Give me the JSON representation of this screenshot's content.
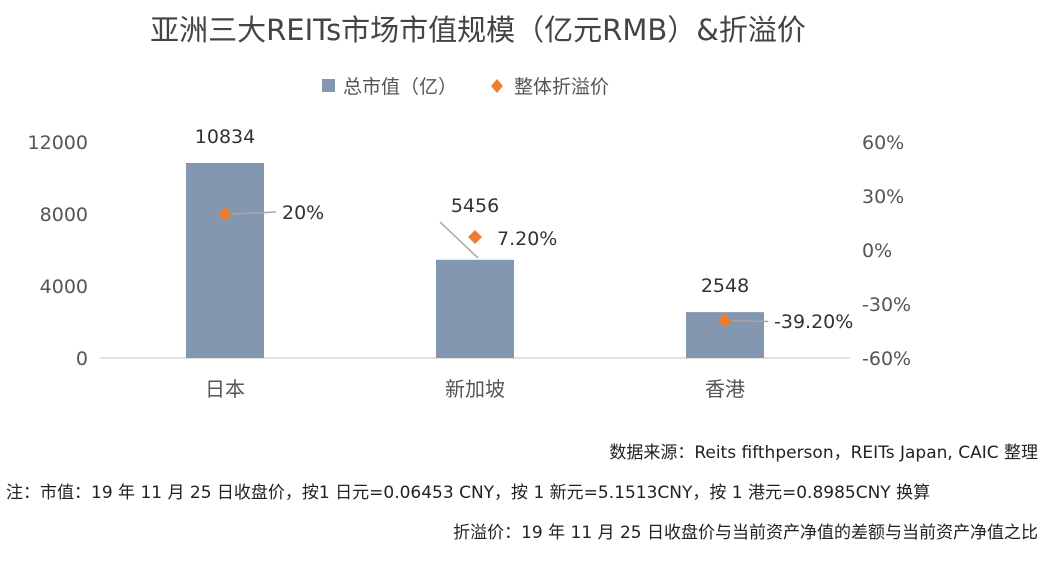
{
  "chart_data": {
    "type": "bar",
    "title": "亚洲三大REITs市场市值规模（亿元RMB）&折溢价",
    "categories": [
      "日本",
      "新加坡",
      "香港"
    ],
    "series": [
      {
        "name": "总市值（亿）",
        "type": "bar",
        "axis": "left",
        "color": "#8497b0",
        "values": [
          10834,
          5456,
          2548
        ],
        "labels": [
          "10834",
          "5456",
          "2548"
        ]
      },
      {
        "name": "整体折溢价",
        "type": "scatter",
        "axis": "right",
        "color": "#ed7d31",
        "values": [
          20,
          7.2,
          -39.2
        ],
        "labels": [
          "20%",
          "7.20%",
          "-39.20%"
        ]
      }
    ],
    "left_axis": {
      "ylim": [
        0,
        12000
      ],
      "ticks": [
        "0",
        "4000",
        "8000",
        "12000"
      ]
    },
    "right_axis": {
      "ylim": [
        -60,
        60
      ],
      "ticks": [
        "-60%",
        "-30%",
        "0%",
        "30%",
        "60%"
      ]
    },
    "legend": "top",
    "grid": false
  },
  "notes": {
    "source": "数据来源：Reits fifthperson，REITs Japan, CAIC 整理",
    "note1": "注：市值：19 年 11 月 25 日收盘价，按1 日元=0.06453 CNY，按 1 新元=5.1513CNY，按 1 港元=0.8985CNY 换算",
    "note2": "折溢价：19 年 11 月 25 日收盘价与当前资产净值的差额与当前资产净值之比"
  }
}
